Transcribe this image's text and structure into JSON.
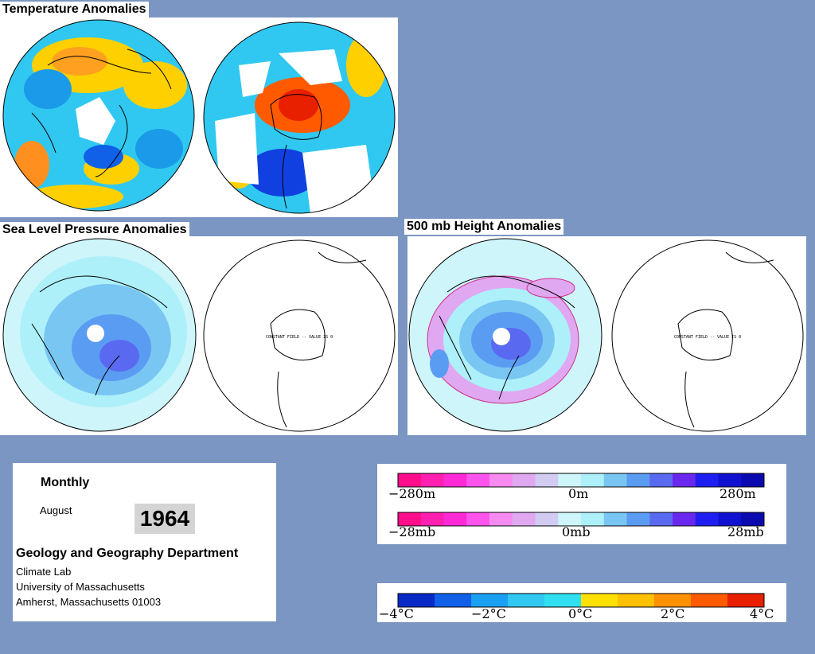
{
  "titles": {
    "temperature": "Temperature Anomalies",
    "slp": "Sea Level Pressure Anomalies",
    "height500": "500 mb Height Anomalies"
  },
  "maps": {
    "constant_field_note": "CONSTANT FIELD -- VALUE IS 0"
  },
  "info": {
    "period": "Monthly",
    "month": "August",
    "year": "1964",
    "department": "Geology and Geography Department",
    "lab": "Climate Lab",
    "university": "University of Massachusetts",
    "address": "Amherst, Massachusetts 01003"
  },
  "legends": {
    "height": {
      "min": "−280m",
      "mid": "0m",
      "max": "280m"
    },
    "pressure": {
      "min": "−28mb",
      "mid": "0mb",
      "max": "28mb"
    },
    "temperature": {
      "t1": "−4°C",
      "t2": "−2°C",
      "t3": "0°C",
      "t4": "2°C",
      "t5": "4°C"
    }
  },
  "colors": {
    "background": "#7b96c2",
    "height_scale": [
      "#ff0d8a",
      "#ff1fb0",
      "#ff29d6",
      "#ff53ee",
      "#f78af0",
      "#e0a8f0",
      "#d2ccf3",
      "#cdf5fa",
      "#aef0fa",
      "#79c6f3",
      "#5b9cf3",
      "#5a6af0",
      "#6a28ee",
      "#1e1ef0",
      "#1010d0",
      "#0a0ab0"
    ],
    "temp_scale": [
      "#0a2ac8",
      "#1060e8",
      "#1aa0f0",
      "#30c8f0",
      "#30e0f0",
      "#ffe000",
      "#ffc000",
      "#ff9000",
      "#ff5a00",
      "#e82000"
    ]
  }
}
